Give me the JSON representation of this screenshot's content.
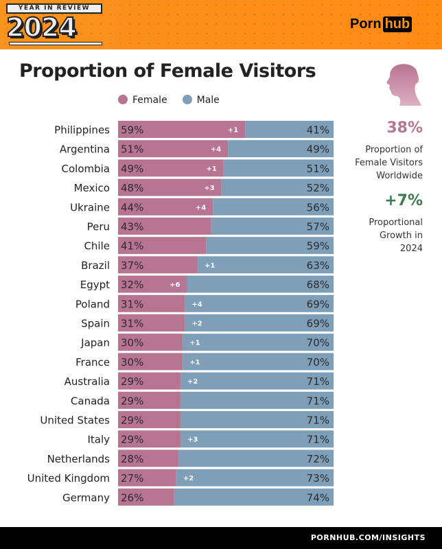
{
  "header": {
    "badge_top": "YEAR IN REVIEW",
    "badge_year": "2024",
    "logo_left": "Porn",
    "logo_right": "hub"
  },
  "footer": {
    "url": "PORNHUB.COM/INSIGHTS"
  },
  "side": {
    "stat1": "38%",
    "stat1_label": "Proportion of Female Visitors Worldwide",
    "stat2": "+7%",
    "stat2_label": "Proportional Growth in 2024",
    "icon": "woman-silhouette-icon"
  },
  "colors": {
    "female": "#b87592",
    "male": "#7f9fb8",
    "accent_orange": "#f7931e",
    "growth_green": "#3d7a4d"
  },
  "chart_data": {
    "type": "bar",
    "stacked": true,
    "orientation": "horizontal",
    "title": "Proportion of Female Visitors",
    "legend": [
      "Female",
      "Male"
    ],
    "legend_position": "top",
    "categories": [
      "Philippines",
      "Argentina",
      "Colombia",
      "Mexico",
      "Ukraine",
      "Peru",
      "Chile",
      "Brazil",
      "Egypt",
      "Poland",
      "Spain",
      "Japan",
      "France",
      "Australia",
      "Canada",
      "United States",
      "Italy",
      "Netherlands",
      "United Kingdom",
      "Germany"
    ],
    "series": [
      {
        "name": "Female",
        "values": [
          59,
          51,
          49,
          48,
          44,
          43,
          41,
          37,
          32,
          31,
          31,
          30,
          30,
          29,
          29,
          29,
          29,
          28,
          27,
          26
        ],
        "labels": [
          "59%",
          "51%",
          "49%",
          "48%",
          "44%",
          "43%",
          "41%",
          "37%",
          "32%",
          "31%",
          "31%",
          "30%",
          "30%",
          "29%",
          "29%",
          "29%",
          "29%",
          "28%",
          "27%",
          "26%"
        ]
      },
      {
        "name": "Male",
        "values": [
          41,
          49,
          51,
          52,
          56,
          57,
          59,
          63,
          68,
          69,
          69,
          70,
          70,
          71,
          71,
          71,
          71,
          72,
          73,
          74
        ],
        "labels": [
          "41%",
          "49%",
          "51%",
          "52%",
          "56%",
          "57%",
          "59%",
          "63%",
          "68%",
          "69%",
          "69%",
          "70%",
          "70%",
          "71%",
          "71%",
          "71%",
          "71%",
          "72%",
          "73%",
          "74%"
        ]
      }
    ],
    "change_labels": [
      "+1",
      "+4",
      "+1",
      "+3",
      "+4",
      "",
      "",
      "+1",
      "+6",
      "+4",
      "+2",
      "+1",
      "+1",
      "+2",
      "",
      "",
      "+3",
      "",
      "+2",
      ""
    ]
  }
}
